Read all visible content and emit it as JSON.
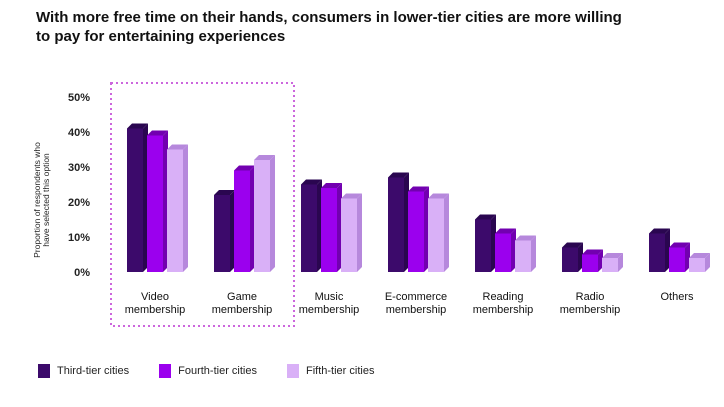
{
  "chart_data": {
    "type": "bar",
    "title": "With more free time on their hands, consumers in lower-tier cities are more willing to pay for entertaining experiences",
    "ylabel": "Proportion of respondents who have selected this option",
    "ylim": [
      0,
      50
    ],
    "yticks": [
      "0%",
      "10%",
      "20%",
      "30%",
      "40%",
      "50%"
    ],
    "categories": [
      [
        "Video",
        "membership"
      ],
      [
        "Game",
        "membership"
      ],
      [
        "Music",
        "membership"
      ],
      [
        "E-commerce",
        "membership"
      ],
      [
        "Reading",
        "membership"
      ],
      [
        "Radio",
        "membership"
      ],
      [
        "Others"
      ]
    ],
    "series": [
      {
        "name": "Third-tier cities",
        "color": "#3c0a6b",
        "side": "#2a0650",
        "values": [
          41,
          22,
          25,
          27,
          15,
          7,
          11
        ]
      },
      {
        "name": "Fourth-tier cities",
        "color": "#9b00ee",
        "side": "#7200b0",
        "values": [
          39,
          29,
          24,
          23,
          11,
          5,
          7
        ]
      },
      {
        "name": "Fifth-tier cities",
        "color": "#d9b0f7",
        "side": "#b688dc",
        "values": [
          35,
          32,
          21,
          21,
          9,
          4,
          4
        ]
      }
    ],
    "highlight": "dotted box around first two categories",
    "legend_position": "bottom-left",
    "grid": false
  }
}
